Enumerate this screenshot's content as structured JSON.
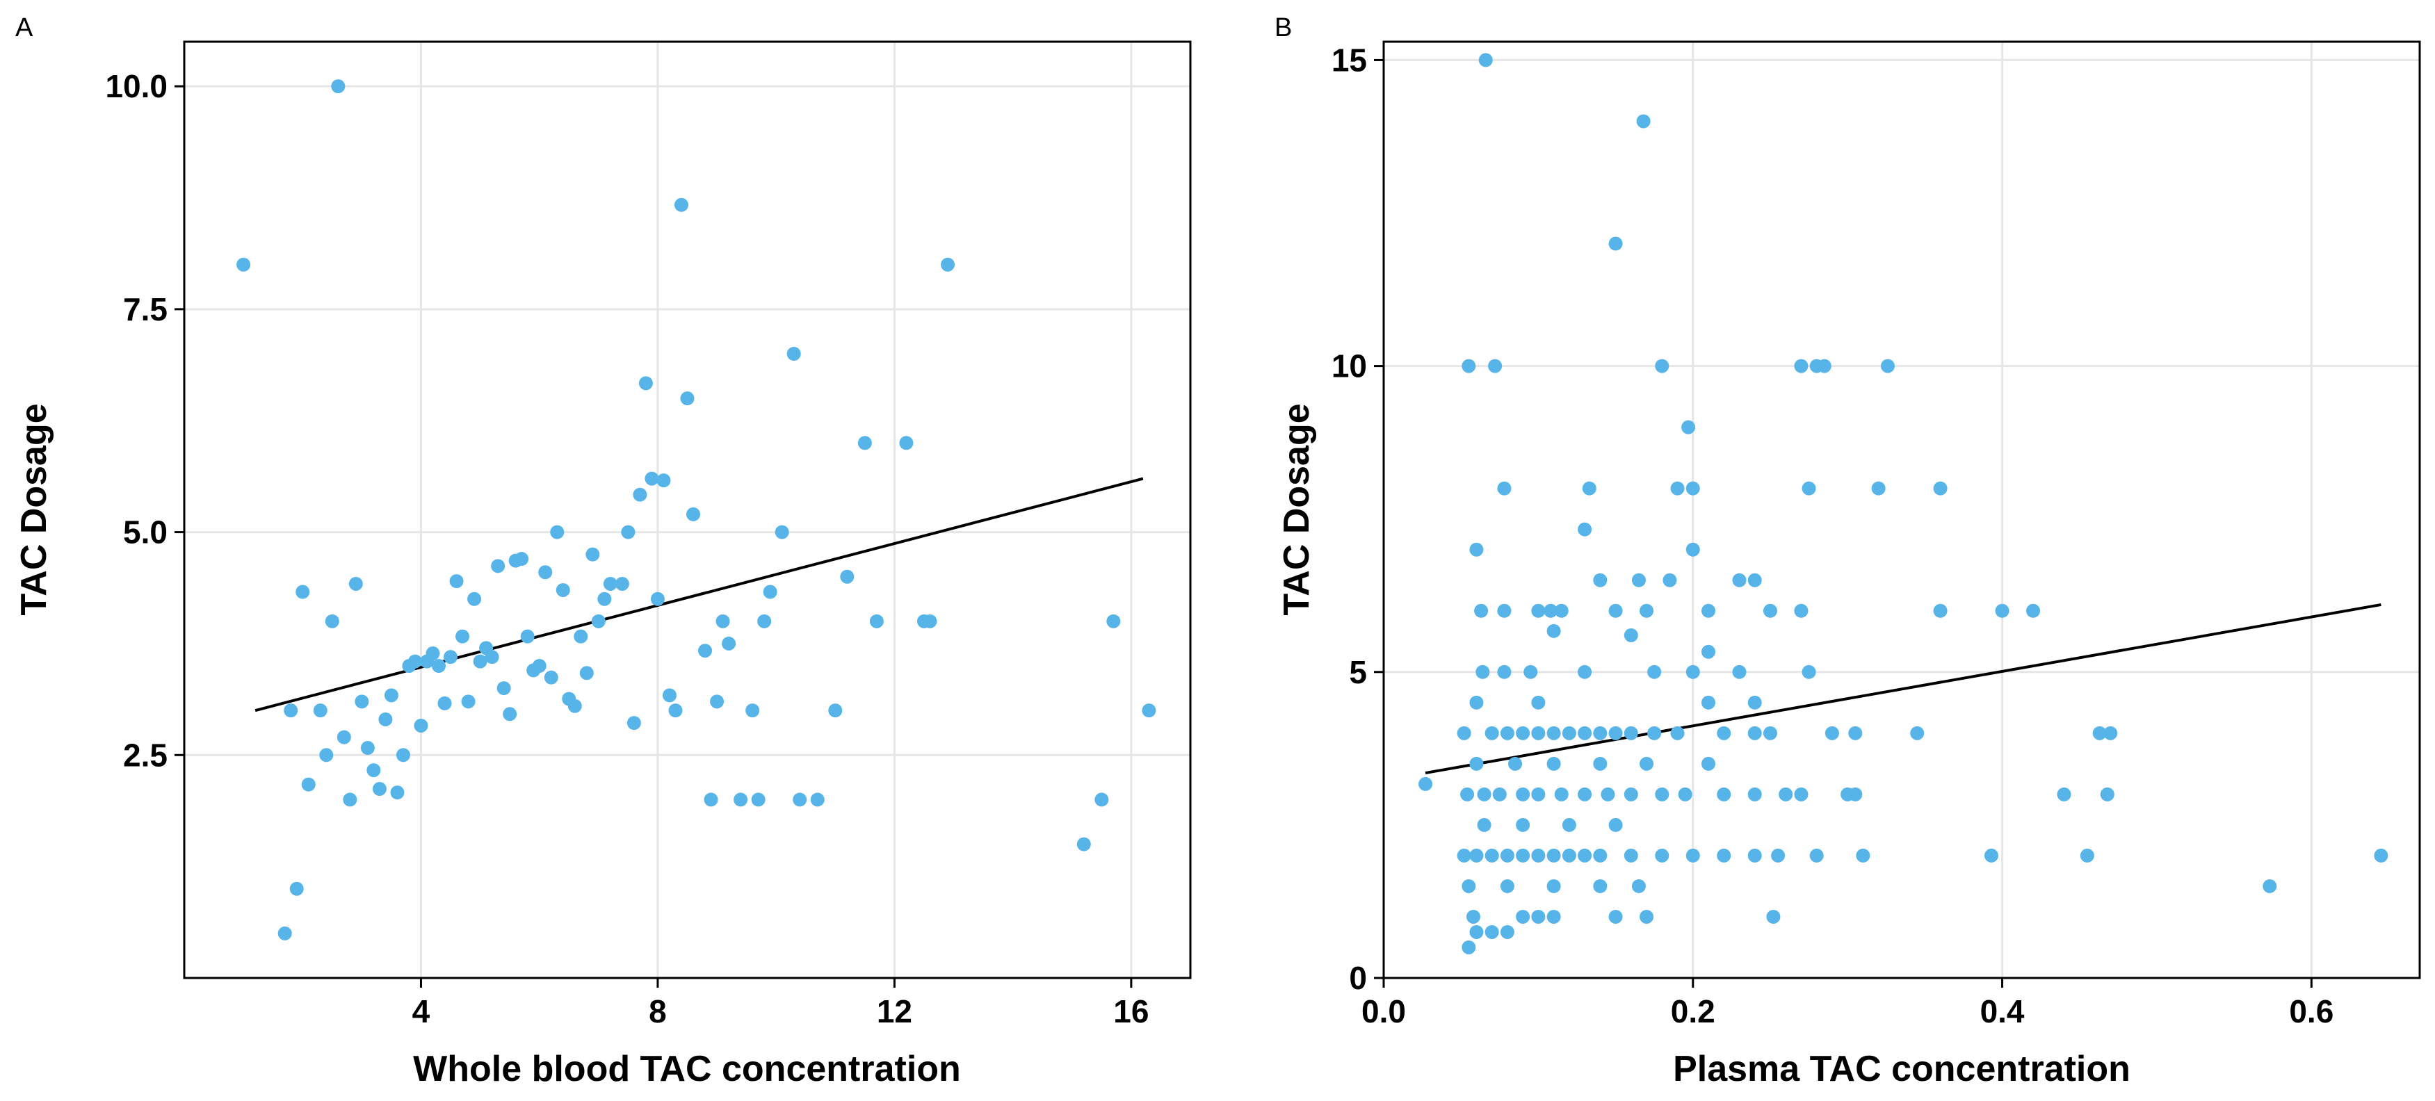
{
  "colors": {
    "point": "#56B4E9",
    "line": "#000000",
    "grid": "#e6e6e6",
    "axis": "#000000"
  },
  "chart_data": [
    {
      "panel": "A",
      "type": "scatter",
      "title": "",
      "xlabel": "Whole blood TAC concentration",
      "ylabel": "TAC Dosage",
      "xlim": [
        0,
        17
      ],
      "ylim": [
        0,
        10.5
      ],
      "xticks": [
        4,
        8,
        12,
        16
      ],
      "xtick_labels": [
        "4",
        "8",
        "12",
        "16"
      ],
      "yticks": [
        2.5,
        5.0,
        7.5,
        10.0
      ],
      "ytick_labels": [
        "2.5",
        "5.0",
        "7.5",
        "10.0"
      ],
      "grid": true,
      "fit_line": {
        "x": [
          1.2,
          16.2
        ],
        "y": [
          3.0,
          5.6
        ]
      },
      "points": [
        [
          1.0,
          8.0
        ],
        [
          1.7,
          0.5
        ],
        [
          1.9,
          1.0
        ],
        [
          2.0,
          4.33
        ],
        [
          1.8,
          3.0
        ],
        [
          2.1,
          2.17
        ],
        [
          2.3,
          3.0
        ],
        [
          2.4,
          2.5
        ],
        [
          2.5,
          4.0
        ],
        [
          2.6,
          10.0
        ],
        [
          2.7,
          2.7
        ],
        [
          2.8,
          2.0
        ],
        [
          2.9,
          4.42
        ],
        [
          3.0,
          3.1
        ],
        [
          3.1,
          2.58
        ],
        [
          3.2,
          2.33
        ],
        [
          3.3,
          2.12
        ],
        [
          3.4,
          2.9
        ],
        [
          3.5,
          3.17
        ],
        [
          3.6,
          2.08
        ],
        [
          3.7,
          2.5
        ],
        [
          3.8,
          3.5
        ],
        [
          3.9,
          3.55
        ],
        [
          4.0,
          2.83
        ],
        [
          4.1,
          3.55
        ],
        [
          4.2,
          3.64
        ],
        [
          4.3,
          3.5
        ],
        [
          4.4,
          3.08
        ],
        [
          4.5,
          3.6
        ],
        [
          4.6,
          4.45
        ],
        [
          4.7,
          3.83
        ],
        [
          4.8,
          3.1
        ],
        [
          4.9,
          4.25
        ],
        [
          5.0,
          3.55
        ],
        [
          5.1,
          3.7
        ],
        [
          5.2,
          3.6
        ],
        [
          5.3,
          4.62
        ],
        [
          5.4,
          3.25
        ],
        [
          5.5,
          2.96
        ],
        [
          5.6,
          4.68
        ],
        [
          5.7,
          4.7
        ],
        [
          5.8,
          3.83
        ],
        [
          5.9,
          3.45
        ],
        [
          6.0,
          3.5
        ],
        [
          6.1,
          4.55
        ],
        [
          6.2,
          3.37
        ],
        [
          6.3,
          5.0
        ],
        [
          6.4,
          4.35
        ],
        [
          6.5,
          3.13
        ],
        [
          6.6,
          3.05
        ],
        [
          6.7,
          3.83
        ],
        [
          6.8,
          3.42
        ],
        [
          6.9,
          4.75
        ],
        [
          7.0,
          4.0
        ],
        [
          7.1,
          4.25
        ],
        [
          7.2,
          4.42
        ],
        [
          7.4,
          4.42
        ],
        [
          7.5,
          5.0
        ],
        [
          7.6,
          2.86
        ],
        [
          7.7,
          5.42
        ],
        [
          7.8,
          6.67
        ],
        [
          7.9,
          5.6
        ],
        [
          8.0,
          4.25
        ],
        [
          8.1,
          5.58
        ],
        [
          8.2,
          3.17
        ],
        [
          8.3,
          3.0
        ],
        [
          8.4,
          8.67
        ],
        [
          8.5,
          6.5
        ],
        [
          8.6,
          5.2
        ],
        [
          8.9,
          2.0
        ],
        [
          8.8,
          3.67
        ],
        [
          9.0,
          3.1
        ],
        [
          9.1,
          4.0
        ],
        [
          9.2,
          3.75
        ],
        [
          9.4,
          2.0
        ],
        [
          9.6,
          3.0
        ],
        [
          9.7,
          2.0
        ],
        [
          9.8,
          4.0
        ],
        [
          9.9,
          4.33
        ],
        [
          10.1,
          5.0
        ],
        [
          10.3,
          7.0
        ],
        [
          10.4,
          2.0
        ],
        [
          10.7,
          2.0
        ],
        [
          11.0,
          3.0
        ],
        [
          11.2,
          4.5
        ],
        [
          11.5,
          6.0
        ],
        [
          11.7,
          4.0
        ],
        [
          12.2,
          6.0
        ],
        [
          12.5,
          4.0
        ],
        [
          12.6,
          4.0
        ],
        [
          12.9,
          8.0
        ],
        [
          15.2,
          1.5
        ],
        [
          15.5,
          2.0
        ],
        [
          15.7,
          4.0
        ],
        [
          16.3,
          3.0
        ]
      ]
    },
    {
      "panel": "B",
      "type": "scatter",
      "title": "",
      "xlabel": "Plasma TAC concentration",
      "ylabel": "TAC Dosage",
      "xlim": [
        0.0,
        0.67
      ],
      "ylim": [
        0,
        15.3
      ],
      "xticks": [
        0.0,
        0.2,
        0.4,
        0.6
      ],
      "xtick_labels": [
        "0.0",
        "0.2",
        "0.4",
        "0.6"
      ],
      "yticks": [
        0,
        5,
        10,
        15
      ],
      "ytick_labels": [
        "0",
        "5",
        "10",
        "15"
      ],
      "grid": true,
      "fit_line": {
        "x": [
          0.027,
          0.645
        ],
        "y": [
          3.35,
          6.1
        ]
      },
      "points": [
        [
          0.066,
          15.0
        ],
        [
          0.168,
          14.0
        ],
        [
          0.15,
          12.0
        ],
        [
          0.055,
          10.0
        ],
        [
          0.072,
          10.0
        ],
        [
          0.18,
          10.0
        ],
        [
          0.27,
          10.0
        ],
        [
          0.28,
          10.0
        ],
        [
          0.285,
          10.0
        ],
        [
          0.326,
          10.0
        ],
        [
          0.197,
          9.0
        ],
        [
          0.078,
          8.0
        ],
        [
          0.133,
          8.0
        ],
        [
          0.19,
          8.0
        ],
        [
          0.2,
          8.0
        ],
        [
          0.275,
          8.0
        ],
        [
          0.32,
          8.0
        ],
        [
          0.36,
          8.0
        ],
        [
          0.06,
          7.0
        ],
        [
          0.2,
          7.0
        ],
        [
          0.13,
          7.33
        ],
        [
          0.14,
          6.5
        ],
        [
          0.165,
          6.5
        ],
        [
          0.185,
          6.5
        ],
        [
          0.23,
          6.5
        ],
        [
          0.24,
          6.5
        ],
        [
          0.063,
          6.0
        ],
        [
          0.078,
          6.0
        ],
        [
          0.1,
          6.0
        ],
        [
          0.108,
          6.0
        ],
        [
          0.115,
          6.0
        ],
        [
          0.15,
          6.0
        ],
        [
          0.17,
          6.0
        ],
        [
          0.21,
          6.0
        ],
        [
          0.25,
          6.0
        ],
        [
          0.27,
          6.0
        ],
        [
          0.36,
          6.0
        ],
        [
          0.4,
          6.0
        ],
        [
          0.42,
          6.0
        ],
        [
          0.11,
          5.67
        ],
        [
          0.16,
          5.6
        ],
        [
          0.21,
          5.33
        ],
        [
          0.064,
          5.0
        ],
        [
          0.078,
          5.0
        ],
        [
          0.095,
          5.0
        ],
        [
          0.13,
          5.0
        ],
        [
          0.175,
          5.0
        ],
        [
          0.2,
          5.0
        ],
        [
          0.23,
          5.0
        ],
        [
          0.275,
          5.0
        ],
        [
          0.06,
          4.5
        ],
        [
          0.1,
          4.5
        ],
        [
          0.21,
          4.5
        ],
        [
          0.24,
          4.5
        ],
        [
          0.052,
          4.0
        ],
        [
          0.07,
          4.0
        ],
        [
          0.08,
          4.0
        ],
        [
          0.09,
          4.0
        ],
        [
          0.1,
          4.0
        ],
        [
          0.11,
          4.0
        ],
        [
          0.12,
          4.0
        ],
        [
          0.13,
          4.0
        ],
        [
          0.14,
          4.0
        ],
        [
          0.15,
          4.0
        ],
        [
          0.16,
          4.0
        ],
        [
          0.175,
          4.0
        ],
        [
          0.19,
          4.0
        ],
        [
          0.22,
          4.0
        ],
        [
          0.24,
          4.0
        ],
        [
          0.25,
          4.0
        ],
        [
          0.29,
          4.0
        ],
        [
          0.305,
          4.0
        ],
        [
          0.345,
          4.0
        ],
        [
          0.463,
          4.0
        ],
        [
          0.47,
          4.0
        ],
        [
          0.06,
          3.5
        ],
        [
          0.085,
          3.5
        ],
        [
          0.11,
          3.5
        ],
        [
          0.14,
          3.5
        ],
        [
          0.17,
          3.5
        ],
        [
          0.21,
          3.5
        ],
        [
          0.054,
          3.0
        ],
        [
          0.065,
          3.0
        ],
        [
          0.075,
          3.0
        ],
        [
          0.09,
          3.0
        ],
        [
          0.1,
          3.0
        ],
        [
          0.115,
          3.0
        ],
        [
          0.13,
          3.0
        ],
        [
          0.145,
          3.0
        ],
        [
          0.16,
          3.0
        ],
        [
          0.18,
          3.0
        ],
        [
          0.195,
          3.0
        ],
        [
          0.22,
          3.0
        ],
        [
          0.24,
          3.0
        ],
        [
          0.26,
          3.0
        ],
        [
          0.27,
          3.0
        ],
        [
          0.3,
          3.0
        ],
        [
          0.305,
          3.0
        ],
        [
          0.44,
          3.0
        ],
        [
          0.468,
          3.0
        ],
        [
          0.065,
          2.5
        ],
        [
          0.09,
          2.5
        ],
        [
          0.12,
          2.5
        ],
        [
          0.15,
          2.5
        ],
        [
          0.052,
          2.0
        ],
        [
          0.06,
          2.0
        ],
        [
          0.07,
          2.0
        ],
        [
          0.08,
          2.0
        ],
        [
          0.09,
          2.0
        ],
        [
          0.1,
          2.0
        ],
        [
          0.11,
          2.0
        ],
        [
          0.12,
          2.0
        ],
        [
          0.13,
          2.0
        ],
        [
          0.14,
          2.0
        ],
        [
          0.16,
          2.0
        ],
        [
          0.18,
          2.0
        ],
        [
          0.2,
          2.0
        ],
        [
          0.22,
          2.0
        ],
        [
          0.24,
          2.0
        ],
        [
          0.255,
          2.0
        ],
        [
          0.28,
          2.0
        ],
        [
          0.31,
          2.0
        ],
        [
          0.393,
          2.0
        ],
        [
          0.455,
          2.0
        ],
        [
          0.645,
          2.0
        ],
        [
          0.055,
          1.5
        ],
        [
          0.08,
          1.5
        ],
        [
          0.11,
          1.5
        ],
        [
          0.14,
          1.5
        ],
        [
          0.165,
          1.5
        ],
        [
          0.573,
          1.5
        ],
        [
          0.058,
          1.0
        ],
        [
          0.09,
          1.0
        ],
        [
          0.1,
          1.0
        ],
        [
          0.11,
          1.0
        ],
        [
          0.15,
          1.0
        ],
        [
          0.17,
          1.0
        ],
        [
          0.252,
          1.0
        ],
        [
          0.06,
          0.75
        ],
        [
          0.07,
          0.75
        ],
        [
          0.08,
          0.75
        ],
        [
          0.055,
          0.5
        ],
        [
          0.027,
          3.17
        ]
      ]
    }
  ]
}
